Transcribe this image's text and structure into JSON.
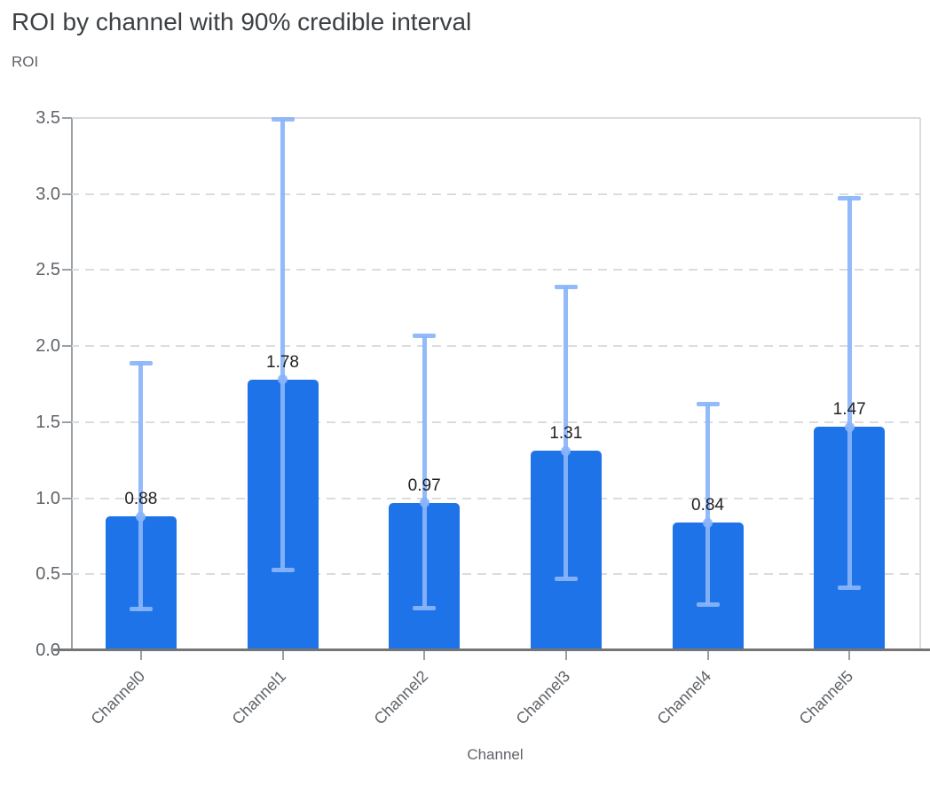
{
  "chart_data": {
    "type": "bar",
    "title": "ROI by channel with 90% credible interval",
    "xlabel": "Channel",
    "ylabel": "ROI",
    "categories": [
      "Channel0",
      "Channel1",
      "Channel2",
      "Channel3",
      "Channel4",
      "Channel5"
    ],
    "series": [
      {
        "name": "ROI",
        "values": [
          0.88,
          1.78,
          0.97,
          1.31,
          0.84,
          1.47
        ]
      }
    ],
    "value_labels": [
      "0.88",
      "1.78",
      "0.97",
      "1.31",
      "0.84",
      "1.47"
    ],
    "error_bars": {
      "label": "90% credible interval",
      "low": [
        0.27,
        0.53,
        0.28,
        0.47,
        0.3,
        0.41
      ],
      "high": [
        1.89,
        3.49,
        2.07,
        2.39,
        1.62,
        2.97
      ]
    },
    "ylim": [
      0,
      3.5
    ],
    "ytick_step": 0.5,
    "ytick_labels": [
      "0.0",
      "0.5",
      "1.0",
      "1.5",
      "2.0",
      "2.5",
      "3.0",
      "3.5"
    ],
    "grid": {
      "horizontal": true,
      "style": "dashed",
      "vertical": false
    },
    "legend": "none",
    "colors": {
      "bar": "#1e73e8",
      "error_bar": "#8ab4f8",
      "gridline": "#dadce0",
      "x_axis_line": "#757575",
      "y_axis_line": "#9aa0a6",
      "title_text": "#3c4043",
      "axis_title_text": "#5f6368",
      "tick_label_text": "#5f6368",
      "value_label_text": "#212121",
      "background": "#ffffff"
    }
  }
}
